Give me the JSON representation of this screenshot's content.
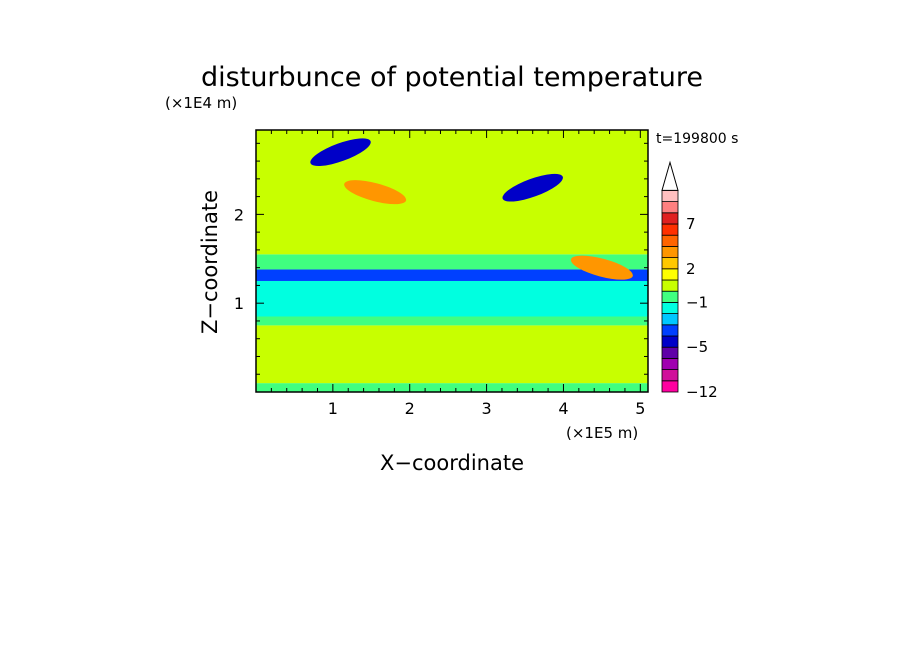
{
  "chart_data": {
    "type": "heatmap",
    "title": "disturbunce of potential temperature",
    "time_label": "t=199800 s",
    "xlabel": "X−coordinate",
    "ylabel": "Z−coordinate",
    "x_unit": "(×1E5 m)",
    "y_unit": "(×1E4 m)",
    "xlim": [
      0,
      5.1
    ],
    "ylim": [
      0,
      2.95
    ],
    "x_ticks": [
      1,
      2,
      3,
      4,
      5
    ],
    "y_ticks": [
      1,
      2
    ],
    "colorbar": {
      "levels": [
        -12,
        -10,
        -8,
        -6,
        -5,
        -4,
        -3,
        -2,
        -1,
        0,
        1,
        2,
        3,
        5,
        6,
        7,
        8,
        9,
        10
      ],
      "tick_labels": [
        "7",
        "2",
        "−1",
        "−5",
        "−12"
      ],
      "extend": "max",
      "colors": [
        "#ff00a0",
        "#d0109a",
        "#a000b0",
        "#6000a8",
        "#0000c8",
        "#0040ff",
        "#00c8ff",
        "#00ffe0",
        "#40ff80",
        "#c8ff00",
        "#ffff00",
        "#ffc800",
        "#ff9600",
        "#ff6400",
        "#ff3000",
        "#e02020",
        "#ff8080",
        "#ffc0c0"
      ]
    },
    "bands": [
      {
        "z_min": 0.0,
        "z_max": 0.1,
        "value": -0.5
      },
      {
        "z_min": 0.1,
        "z_max": 0.75,
        "value": 0.8
      },
      {
        "z_min": 0.75,
        "z_max": 0.85,
        "value": -0.5
      },
      {
        "z_min": 0.85,
        "z_max": 1.25,
        "value": -1.5
      },
      {
        "z_min": 1.25,
        "z_max": 1.38,
        "value": -4.0
      },
      {
        "z_min": 1.38,
        "z_max": 1.55,
        "value": -0.5
      },
      {
        "z_min": 1.55,
        "z_max": 2.95,
        "value": 0.8
      }
    ],
    "features": [
      {
        "x": 1.55,
        "z": 2.25,
        "value": 4.5
      },
      {
        "x": 3.6,
        "z": 2.3,
        "value": -5.0
      },
      {
        "x": 1.1,
        "z": 2.7,
        "value": -4.5
      },
      {
        "x": 4.5,
        "z": 1.4,
        "value": 3.0
      }
    ]
  }
}
